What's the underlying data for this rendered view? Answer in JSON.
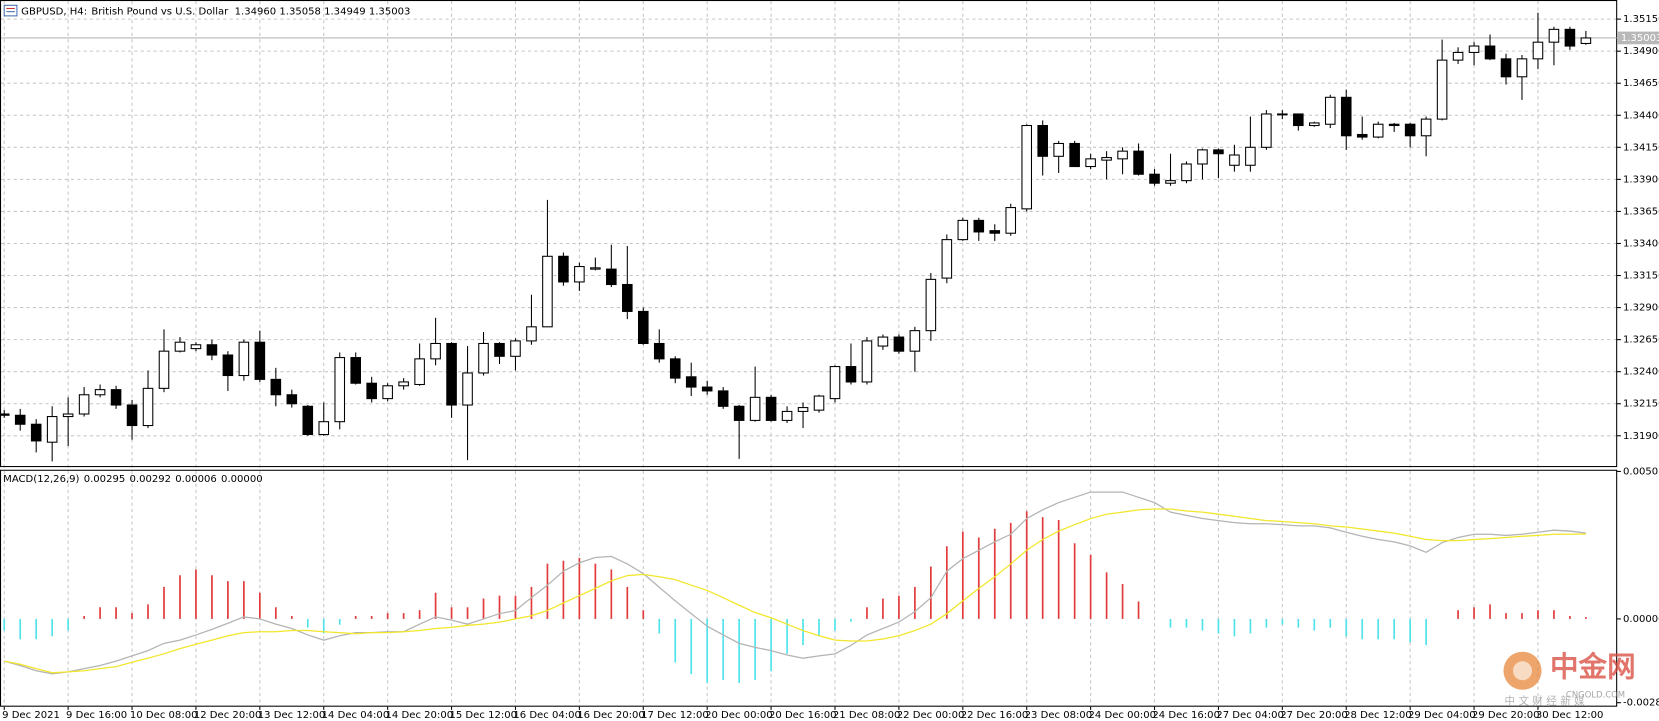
{
  "chart_data": [
    {
      "type": "candlestick",
      "symbol": "GBPUSD, H4:",
      "description": "British Pound vs U.S. Dollar",
      "ohlc_label": "1.34960 1.35058 1.34949 1.35003",
      "categories": [
        "9 Dec 2021",
        null,
        null,
        null,
        "9 Dec 16:00",
        null,
        null,
        null,
        "10 Dec 08:00",
        null,
        null,
        null,
        "12 Dec 20:00",
        null,
        null,
        null,
        "13 Dec 12:00",
        null,
        null,
        null,
        "14 Dec 04:00",
        null,
        null,
        null,
        "14 Dec 20:00",
        null,
        null,
        null,
        "15 Dec 12:00",
        null,
        null,
        null,
        "16 Dec 04:00",
        null,
        null,
        null,
        "16 Dec 20:00",
        null,
        null,
        null,
        "17 Dec 12:00",
        null,
        null,
        null,
        "20 Dec 00:00",
        null,
        null,
        null,
        "20 Dec 16:00",
        null,
        null,
        null,
        "21 Dec 08:00",
        null,
        null,
        null,
        "22 Dec 00:00",
        null,
        null,
        null,
        "22 Dec 16:00",
        null,
        null,
        null,
        "23 Dec 08:00",
        null,
        null,
        null,
        "24 Dec 00:00",
        null,
        null,
        null,
        "24 Dec 16:00",
        null,
        null,
        null,
        "27 Dec 04:00",
        null,
        null,
        null,
        "27 Dec 20:00",
        null,
        null,
        null,
        "28 Dec 12:00",
        null,
        null,
        null,
        "29 Dec 04:00",
        null,
        null,
        null,
        "29 Dec 20:00",
        null,
        null,
        null,
        "30 Dec 12:00",
        null,
        null,
        null
      ],
      "open": [
        1.3207,
        1.3206,
        1.3199,
        1.3185,
        1.3205,
        1.3207,
        1.3222,
        1.3226,
        1.3214,
        1.3198,
        1.3227,
        1.3256,
        1.3258,
        1.3261,
        1.3253,
        1.3237,
        1.3263,
        1.3234,
        1.3222,
        1.3213,
        1.3191,
        1.3201,
        1.3251,
        1.3231,
        1.3219,
        1.3229,
        1.323,
        1.325,
        1.3262,
        1.3214,
        1.3239,
        1.3262,
        1.3252,
        1.3264,
        1.3275,
        1.333,
        1.331,
        1.332,
        1.332,
        1.3308,
        1.3287,
        1.3262,
        1.325,
        1.3236,
        1.3228,
        1.3225,
        1.3213,
        1.3202,
        1.322,
        1.3202,
        1.3209,
        1.321,
        1.3219,
        1.3244,
        1.3232,
        1.326,
        1.3267,
        1.3256,
        1.3272,
        1.3313,
        1.3343,
        1.3358,
        1.335,
        1.3348,
        1.3367,
        1.3432,
        1.3408,
        1.3418,
        1.34,
        1.3405,
        1.3406,
        1.3412,
        1.3394,
        1.3387,
        1.3389,
        1.3402,
        1.3413,
        1.3401,
        1.3401,
        1.3415,
        1.3441,
        1.3441,
        1.3432,
        1.3433,
        1.3454,
        1.3425,
        1.3423,
        1.3433,
        1.3433,
        1.3424,
        1.3437,
        1.3483,
        1.3489,
        1.3494,
        1.3484,
        1.347,
        1.3484,
        1.3497,
        1.3507,
        1.3496
      ],
      "high": [
        1.321,
        1.3211,
        1.3203,
        1.3213,
        1.322,
        1.3228,
        1.323,
        1.3229,
        1.3218,
        1.3241,
        1.3273,
        1.3267,
        1.3263,
        1.3265,
        1.3256,
        1.3265,
        1.3272,
        1.3243,
        1.3226,
        1.3214,
        1.3216,
        1.3255,
        1.3255,
        1.3236,
        1.3231,
        1.3235,
        1.3262,
        1.3282,
        1.3263,
        1.326,
        1.3271,
        1.3263,
        1.3266,
        1.33,
        1.3374,
        1.3333,
        1.3325,
        1.3329,
        1.3339,
        1.3338,
        1.329,
        1.3273,
        1.3252,
        1.3247,
        1.3233,
        1.3228,
        1.3214,
        1.3244,
        1.3222,
        1.3213,
        1.3216,
        1.3222,
        1.3245,
        1.3262,
        1.3267,
        1.3269,
        1.3269,
        1.3275,
        1.3317,
        1.3347,
        1.336,
        1.336,
        1.3355,
        1.3371,
        1.3433,
        1.3436,
        1.342,
        1.342,
        1.341,
        1.3412,
        1.3415,
        1.3418,
        1.3398,
        1.341,
        1.3404,
        1.3414,
        1.3414,
        1.3417,
        1.3439,
        1.3444,
        1.3444,
        1.3441,
        1.3435,
        1.3456,
        1.346,
        1.3439,
        1.3435,
        1.3434,
        1.3434,
        1.3439,
        1.3499,
        1.3493,
        1.3497,
        1.3503,
        1.3488,
        1.3487,
        1.352,
        1.3509,
        1.3509,
        1.35058
      ],
      "low": [
        1.3204,
        1.3194,
        1.3177,
        1.317,
        1.3182,
        1.3205,
        1.322,
        1.3211,
        1.3187,
        1.3196,
        1.3224,
        1.3255,
        1.3256,
        1.3249,
        1.3225,
        1.3233,
        1.3232,
        1.3213,
        1.3212,
        1.319,
        1.319,
        1.3195,
        1.323,
        1.3216,
        1.3217,
        1.3226,
        1.3229,
        1.3245,
        1.3204,
        1.3171,
        1.3237,
        1.3246,
        1.3241,
        1.3261,
        1.3275,
        1.3307,
        1.3303,
        1.3319,
        1.3306,
        1.3281,
        1.3261,
        1.3247,
        1.3231,
        1.3221,
        1.3222,
        1.3211,
        1.3172,
        1.3201,
        1.3201,
        1.32,
        1.3196,
        1.3208,
        1.3216,
        1.323,
        1.323,
        1.3257,
        1.3254,
        1.324,
        1.3264,
        1.3309,
        1.3342,
        1.3342,
        1.3342,
        1.3346,
        1.3365,
        1.3393,
        1.3395,
        1.34,
        1.3398,
        1.339,
        1.3394,
        1.3393,
        1.3385,
        1.3385,
        1.3387,
        1.339,
        1.3391,
        1.3396,
        1.3396,
        1.3413,
        1.3437,
        1.3428,
        1.3431,
        1.343,
        1.3413,
        1.3421,
        1.3422,
        1.3427,
        1.3415,
        1.3408,
        1.3436,
        1.348,
        1.3479,
        1.3483,
        1.3464,
        1.3452,
        1.3476,
        1.3479,
        1.3491,
        1.34949
      ],
      "close": [
        1.3206,
        1.3199,
        1.3186,
        1.3205,
        1.3207,
        1.3222,
        1.3226,
        1.3214,
        1.3198,
        1.3227,
        1.3256,
        1.3263,
        1.3261,
        1.3253,
        1.3237,
        1.3263,
        1.3234,
        1.3222,
        1.3215,
        1.3191,
        1.3201,
        1.3251,
        1.3231,
        1.3219,
        1.3229,
        1.3232,
        1.325,
        1.3262,
        1.3214,
        1.3239,
        1.3262,
        1.3252,
        1.3264,
        1.3275,
        1.333,
        1.331,
        1.3322,
        1.3321,
        1.3308,
        1.3287,
        1.3262,
        1.325,
        1.3235,
        1.3228,
        1.3225,
        1.3213,
        1.3202,
        1.322,
        1.3202,
        1.3209,
        1.3212,
        1.3221,
        1.3244,
        1.3232,
        1.3264,
        1.3267,
        1.3256,
        1.3272,
        1.3312,
        1.3343,
        1.3358,
        1.3349,
        1.3348,
        1.3368,
        1.3432,
        1.3408,
        1.3418,
        1.34,
        1.3406,
        1.3407,
        1.3412,
        1.3394,
        1.3387,
        1.3389,
        1.3402,
        1.3413,
        1.341,
        1.3409,
        1.3415,
        1.3441,
        1.3441,
        1.3432,
        1.3434,
        1.3454,
        1.3424,
        1.3423,
        1.3433,
        1.3432,
        1.3424,
        1.3437,
        1.3483,
        1.3489,
        1.3494,
        1.3484,
        1.347,
        1.3484,
        1.3497,
        1.3507,
        1.3494,
        1.35003
      ],
      "up_color": "#ffffff",
      "down_color": "#000000",
      "wick_color": "#000000",
      "ylim": [
        1.3166,
        1.35299
      ],
      "yticks": [
        {
          "value": 1.3515,
          "label": "1.35150"
        },
        {
          "value": 1.349,
          "label": "1.34900"
        },
        {
          "value": 1.3465,
          "label": "1.34650"
        },
        {
          "value": 1.344,
          "label": "1.34400"
        },
        {
          "value": 1.3415,
          "label": "1.34150"
        },
        {
          "value": 1.339,
          "label": "1.33900"
        },
        {
          "value": 1.3365,
          "label": "1.33650"
        },
        {
          "value": 1.334,
          "label": "1.33400"
        },
        {
          "value": 1.3315,
          "label": "1.33150"
        },
        {
          "value": 1.329,
          "label": "1.32900"
        },
        {
          "value": 1.3265,
          "label": "1.32650"
        },
        {
          "value": 1.324,
          "label": "1.32400"
        },
        {
          "value": 1.3215,
          "label": "1.32150"
        },
        {
          "value": 1.319,
          "label": "1.31900"
        }
      ],
      "last_price": {
        "value": 1.35003,
        "label": "1.35003"
      },
      "last_price_color": "#b8b8b8",
      "grid": true,
      "grid_color": "#c6c6c6"
    },
    {
      "type": "macd",
      "label": "MACD(12,26,9)",
      "header_values": [
        "0.00295",
        "0.00292",
        "0.00006",
        "0.00000"
      ],
      "histogram": {
        "up_color": "#e23b3b",
        "down_color": "#52e3ea",
        "values": [
          -0.0004,
          -0.0007,
          -0.0007,
          -0.0006,
          -0.0004,
          0.0001,
          0.0004,
          0.0004,
          0.0002,
          0.0005,
          0.0011,
          0.0015,
          0.0017,
          0.0015,
          0.0013,
          0.0013,
          0.0009,
          0.0004,
          0.0001,
          -0.0003,
          -0.0005,
          -0.0002,
          0.0001,
          0.0001,
          0.0002,
          0.0002,
          0.0003,
          0.0009,
          0.0004,
          0.0004,
          0.0007,
          0.0008,
          0.0008,
          0.0011,
          0.0019,
          0.002,
          0.0021,
          0.0019,
          0.0017,
          0.0011,
          0.0003,
          -0.0005,
          -0.0015,
          -0.0019,
          -0.0022,
          -0.0021,
          -0.0022,
          -0.0021,
          -0.0018,
          -0.0012,
          -0.0009,
          -0.0006,
          -0.0004,
          -0.0001,
          0.0004,
          0.0007,
          0.0008,
          0.0011,
          0.0018,
          0.0025,
          0.003,
          0.0028,
          0.0031,
          0.0033,
          0.0037,
          0.0035,
          0.0034,
          0.0026,
          0.0022,
          0.0016,
          0.0012,
          0.0006,
          0,
          -0.0003,
          -0.0003,
          -0.0004,
          -0.0005,
          -0.0006,
          -0.0005,
          -0.0003,
          -0.0002,
          -0.0003,
          -0.0004,
          -0.0003,
          -0.0006,
          -0.0007,
          -0.0007,
          -0.0007,
          -0.0008,
          -0.0009,
          0,
          0.0003,
          0.0004,
          0.0005,
          0.0002,
          0.0002,
          0.0003,
          0.0003,
          0.0001,
          6e-05
        ]
      },
      "series": [
        {
          "color": "#b4b4b4",
          "values": [
            -0.00145,
            -0.0016,
            -0.00178,
            -0.00189,
            -0.00182,
            -0.00171,
            -0.0016,
            -0.00145,
            -0.00127,
            -0.00109,
            -0.00084,
            -0.00073,
            -0.00055,
            -0.00036,
            -0.00015,
            7e-05,
            0,
            -0.00018,
            -0.00033,
            -0.00055,
            -0.00073,
            -0.00058,
            -0.00047,
            -0.00047,
            -0.00044,
            -0.00044,
            -0.00018,
            7e-05,
            -4e-05,
            -0.00018,
            0,
            0.00018,
            0.00029,
            0.00073,
            0.00116,
            0.00164,
            0.00193,
            0.00211,
            0.00215,
            0.00189,
            0.00156,
            0.00109,
            0.00062,
            0.00018,
            -0.00025,
            -0.00055,
            -0.00084,
            -0.00098,
            -0.00109,
            -0.00124,
            -0.00135,
            -0.00127,
            -0.0012,
            -0.00091,
            -0.00055,
            -0.00033,
            -0.00011,
            0.00025,
            0.00073,
            0.00164,
            0.00207,
            0.00236,
            0.00265,
            0.00291,
            0.00345,
            0.00375,
            0.004,
            0.00418,
            0.00436,
            0.00436,
            0.00436,
            0.00418,
            0.004,
            0.00367,
            0.00356,
            0.00345,
            0.00338,
            0.00331,
            0.00327,
            0.00327,
            0.00324,
            0.0032,
            0.0032,
            0.00313,
            0.00298,
            0.00284,
            0.00273,
            0.00265,
            0.00251,
            0.00229,
            0.00262,
            0.0028,
            0.00291,
            0.00291,
            0.00287,
            0.00291,
            0.00298,
            0.00305,
            0.00302,
            0.00295
          ]
        },
        {
          "color": "#f2e62a",
          "values": [
            -0.00145,
            -0.00156,
            -0.00171,
            -0.00185,
            -0.00182,
            -0.00178,
            -0.00171,
            -0.00164,
            -0.00149,
            -0.00135,
            -0.0012,
            -0.00102,
            -0.00087,
            -0.00073,
            -0.00058,
            -0.00047,
            -0.00044,
            -0.00044,
            -0.0004,
            -0.0004,
            -0.00044,
            -0.00047,
            -0.00051,
            -0.00047,
            -0.00047,
            -0.00044,
            -0.0004,
            -0.00033,
            -0.00029,
            -0.00022,
            -0.00018,
            -0.00011,
            0,
            0.00011,
            0.00029,
            0.00055,
            0.0008,
            0.00105,
            0.00131,
            0.00149,
            0.00153,
            0.00145,
            0.00135,
            0.00116,
            0.00098,
            0.00073,
            0.00047,
            0.00022,
            4e-05,
            -0.00018,
            -0.0004,
            -0.00058,
            -0.00073,
            -0.00076,
            -0.00076,
            -0.00069,
            -0.00058,
            -0.0004,
            -0.00018,
            0.00018,
            0.00062,
            0.00105,
            0.00145,
            0.00189,
            0.00236,
            0.00273,
            0.00302,
            0.00324,
            0.00345,
            0.0036,
            0.00367,
            0.00375,
            0.00378,
            0.00378,
            0.00371,
            0.00367,
            0.0036,
            0.00353,
            0.00345,
            0.00338,
            0.00335,
            0.00331,
            0.00327,
            0.0032,
            0.00316,
            0.00309,
            0.00302,
            0.00295,
            0.00284,
            0.00273,
            0.00269,
            0.00269,
            0.00273,
            0.00276,
            0.0028,
            0.00284,
            0.00287,
            0.00291,
            0.00291,
            0.00292
          ]
        }
      ],
      "ylim": [
        -0.00288,
        0.00507
      ],
      "yticks": [
        {
          "value": 0.00507,
          "label": "0.00507"
        },
        {
          "value": 0,
          "label": "0.00000"
        },
        {
          "value": -0.00288,
          "label": "-0.00288"
        }
      ],
      "grid": true,
      "grid_color": "#c6c6c6"
    }
  ],
  "watermark": {
    "name": "中金网",
    "url": "CNGOLD.COM",
    "tagline": "中 文 财 经 新 媒"
  }
}
